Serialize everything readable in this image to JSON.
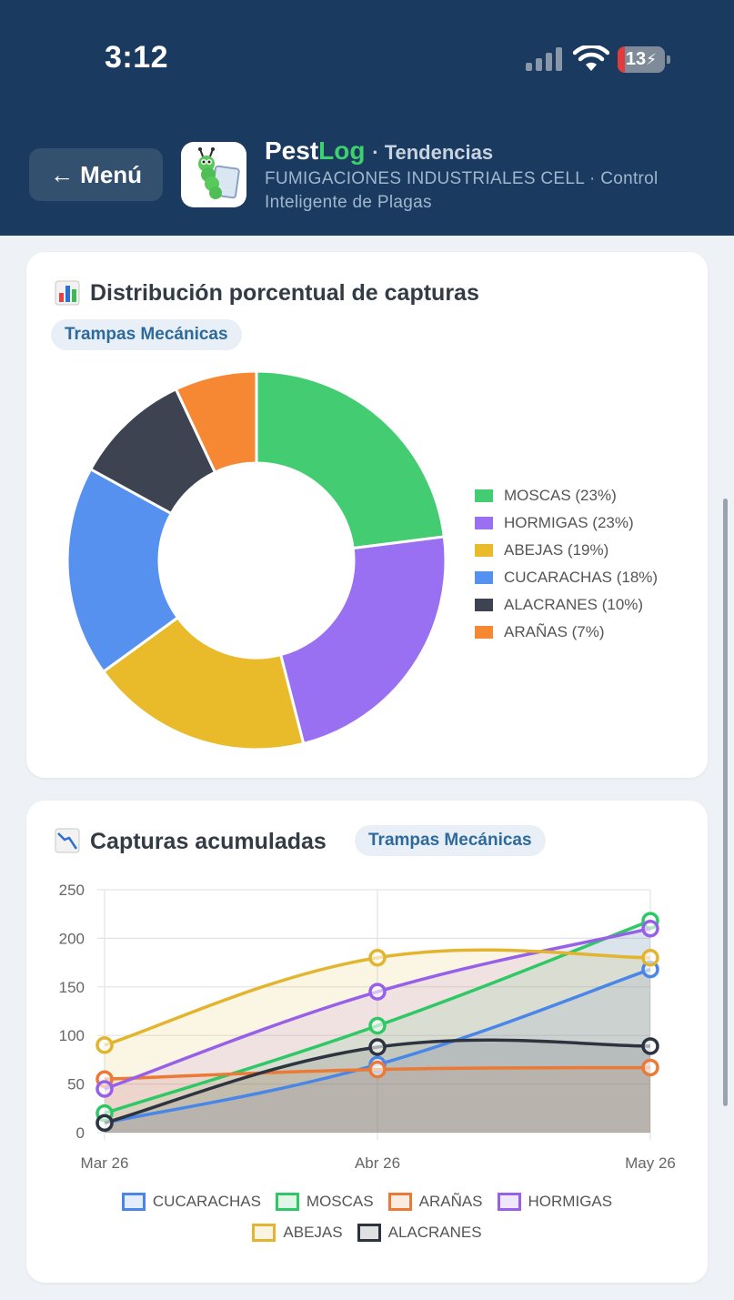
{
  "status": {
    "time": "3:12",
    "battery": "13"
  },
  "header": {
    "menu_label": "← Menú",
    "app_name_a": "Pest",
    "app_name_b": "Log",
    "section": "· Tendencias",
    "subtitle": "FUMIGACIONES INDUSTRIALES CELL · Control Inteligente de Plagas"
  },
  "colors": {
    "header_bg": "#1b3a5f",
    "moscas": "#43cc72",
    "hormigas": "#9a70f2",
    "abejas": "#e9bb2b",
    "cucarachas": "#5691f0",
    "alacranes": "#3d4350",
    "aranas": "#f68834"
  },
  "chart_data": [
    {
      "type": "pie",
      "title": "Distribución porcentual de capturas",
      "filter": "Trampas Mecánicas",
      "legend_position": "right",
      "slices": [
        {
          "name": "MOSCAS",
          "value": 23,
          "label": "MOSCAS (23%)",
          "color": "#43cc72"
        },
        {
          "name": "HORMIGAS",
          "value": 23,
          "label": "HORMIGAS (23%)",
          "color": "#9a70f2"
        },
        {
          "name": "ABEJAS",
          "value": 19,
          "label": "ABEJAS (19%)",
          "color": "#e9bb2b"
        },
        {
          "name": "CUCARACHAS",
          "value": 18,
          "label": "CUCARACHAS (18%)",
          "color": "#5691f0"
        },
        {
          "name": "ALACRANES",
          "value": 10,
          "label": "ALACRANES (10%)",
          "color": "#3d4350"
        },
        {
          "name": "ARAÑAS",
          "value": 7,
          "label": "ARAÑAS (7%)",
          "color": "#f68834"
        }
      ]
    },
    {
      "type": "area",
      "title": "Capturas acumuladas",
      "filter": "Trampas Mecánicas",
      "categories": [
        "Mar 26",
        "Abr 26",
        "May 26"
      ],
      "ylim": [
        0,
        250
      ],
      "yticks": [
        0,
        50,
        100,
        150,
        200,
        250
      ],
      "grid": true,
      "legend_position": "bottom",
      "series": [
        {
          "name": "CUCARACHAS",
          "values": [
            10,
            70,
            168
          ],
          "color": "#4a86e8"
        },
        {
          "name": "MOSCAS",
          "values": [
            20,
            110,
            218
          ],
          "color": "#2ec866"
        },
        {
          "name": "ARAÑAS",
          "values": [
            55,
            65,
            67
          ],
          "color": "#ea7a35"
        },
        {
          "name": "HORMIGAS",
          "values": [
            45,
            145,
            210
          ],
          "color": "#9760e8"
        },
        {
          "name": "ABEJAS",
          "values": [
            90,
            180,
            180
          ],
          "color": "#e3b52f"
        },
        {
          "name": "ALACRANES",
          "values": [
            10,
            88,
            89
          ],
          "color": "#2d3440"
        }
      ]
    }
  ]
}
